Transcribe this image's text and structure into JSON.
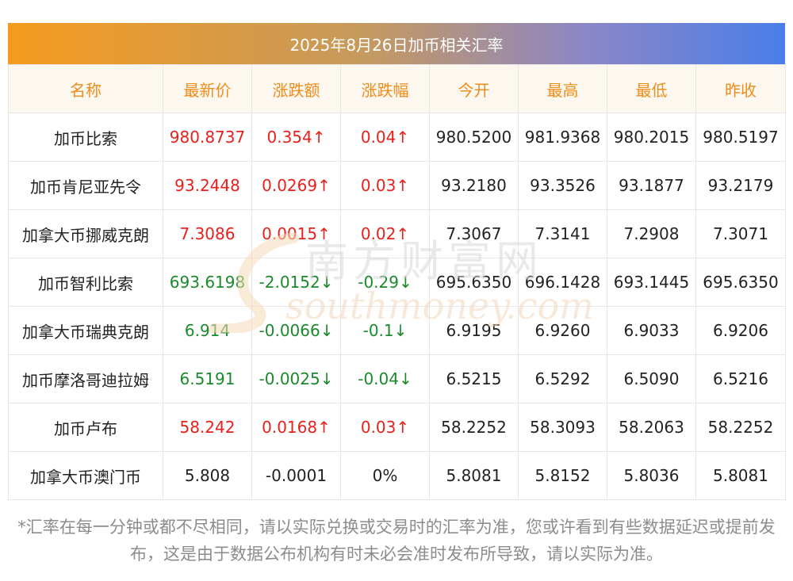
{
  "title": "2025年8月26日加币相关汇率",
  "columns": [
    "名称",
    "最新价",
    "涨跌额",
    "涨跌幅",
    "今开",
    "最高",
    "最低",
    "昨收"
  ],
  "rows": [
    {
      "name": "加币比索",
      "latest": "980.8737",
      "change": "0.354↑",
      "pct": "0.04↑",
      "open": "980.5200",
      "high": "981.9368",
      "low": "980.2015",
      "prev": "980.5197",
      "trend": "up"
    },
    {
      "name": "加币肯尼亚先令",
      "latest": "93.2448",
      "change": "0.0269↑",
      "pct": "0.03↑",
      "open": "93.2180",
      "high": "93.3526",
      "low": "93.1877",
      "prev": "93.2179",
      "trend": "up"
    },
    {
      "name": "加拿大币挪威克朗",
      "latest": "7.3086",
      "change": "0.0015↑",
      "pct": "0.02↑",
      "open": "7.3067",
      "high": "7.3141",
      "low": "7.2908",
      "prev": "7.3071",
      "trend": "up"
    },
    {
      "name": "加币智利比索",
      "latest": "693.6198",
      "change": "-2.0152↓",
      "pct": "-0.29↓",
      "open": "695.6350",
      "high": "696.1428",
      "low": "693.1445",
      "prev": "695.6350",
      "trend": "down"
    },
    {
      "name": "加拿大币瑞典克朗",
      "latest": "6.914",
      "change": "-0.0066↓",
      "pct": "-0.1↓",
      "open": "6.9195",
      "high": "6.9260",
      "low": "6.9033",
      "prev": "6.9206",
      "trend": "down"
    },
    {
      "name": "加币摩洛哥迪拉姆",
      "latest": "6.5191",
      "change": "-0.0025↓",
      "pct": "-0.04↓",
      "open": "6.5215",
      "high": "6.5292",
      "low": "6.5090",
      "prev": "6.5216",
      "trend": "down"
    },
    {
      "name": "加币卢布",
      "latest": "58.242",
      "change": "0.0168↑",
      "pct": "0.03↑",
      "open": "58.2252",
      "high": "58.3093",
      "low": "58.2063",
      "prev": "58.2252",
      "trend": "up"
    },
    {
      "name": "加拿大币澳门币",
      "latest": "5.808",
      "change": "-0.0001",
      "pct": "0%",
      "open": "5.8081",
      "high": "5.8152",
      "low": "5.8036",
      "prev": "5.8081",
      "trend": "flat"
    }
  ],
  "watermark": {
    "cn": "南方财富网",
    "en": "southmoney.com"
  },
  "footnote": "*汇率在每一分钟或都不尽相同，请以实际兑换或交易时的汇率为准，您或许看到有些数据延迟或提前发布，这是由于数据公布机构有时未必会准时发布所导致，请以实际为准。",
  "colors": {
    "up": "#e8211c",
    "down": "#1a8a2a",
    "header_text": "#f08c1a"
  }
}
